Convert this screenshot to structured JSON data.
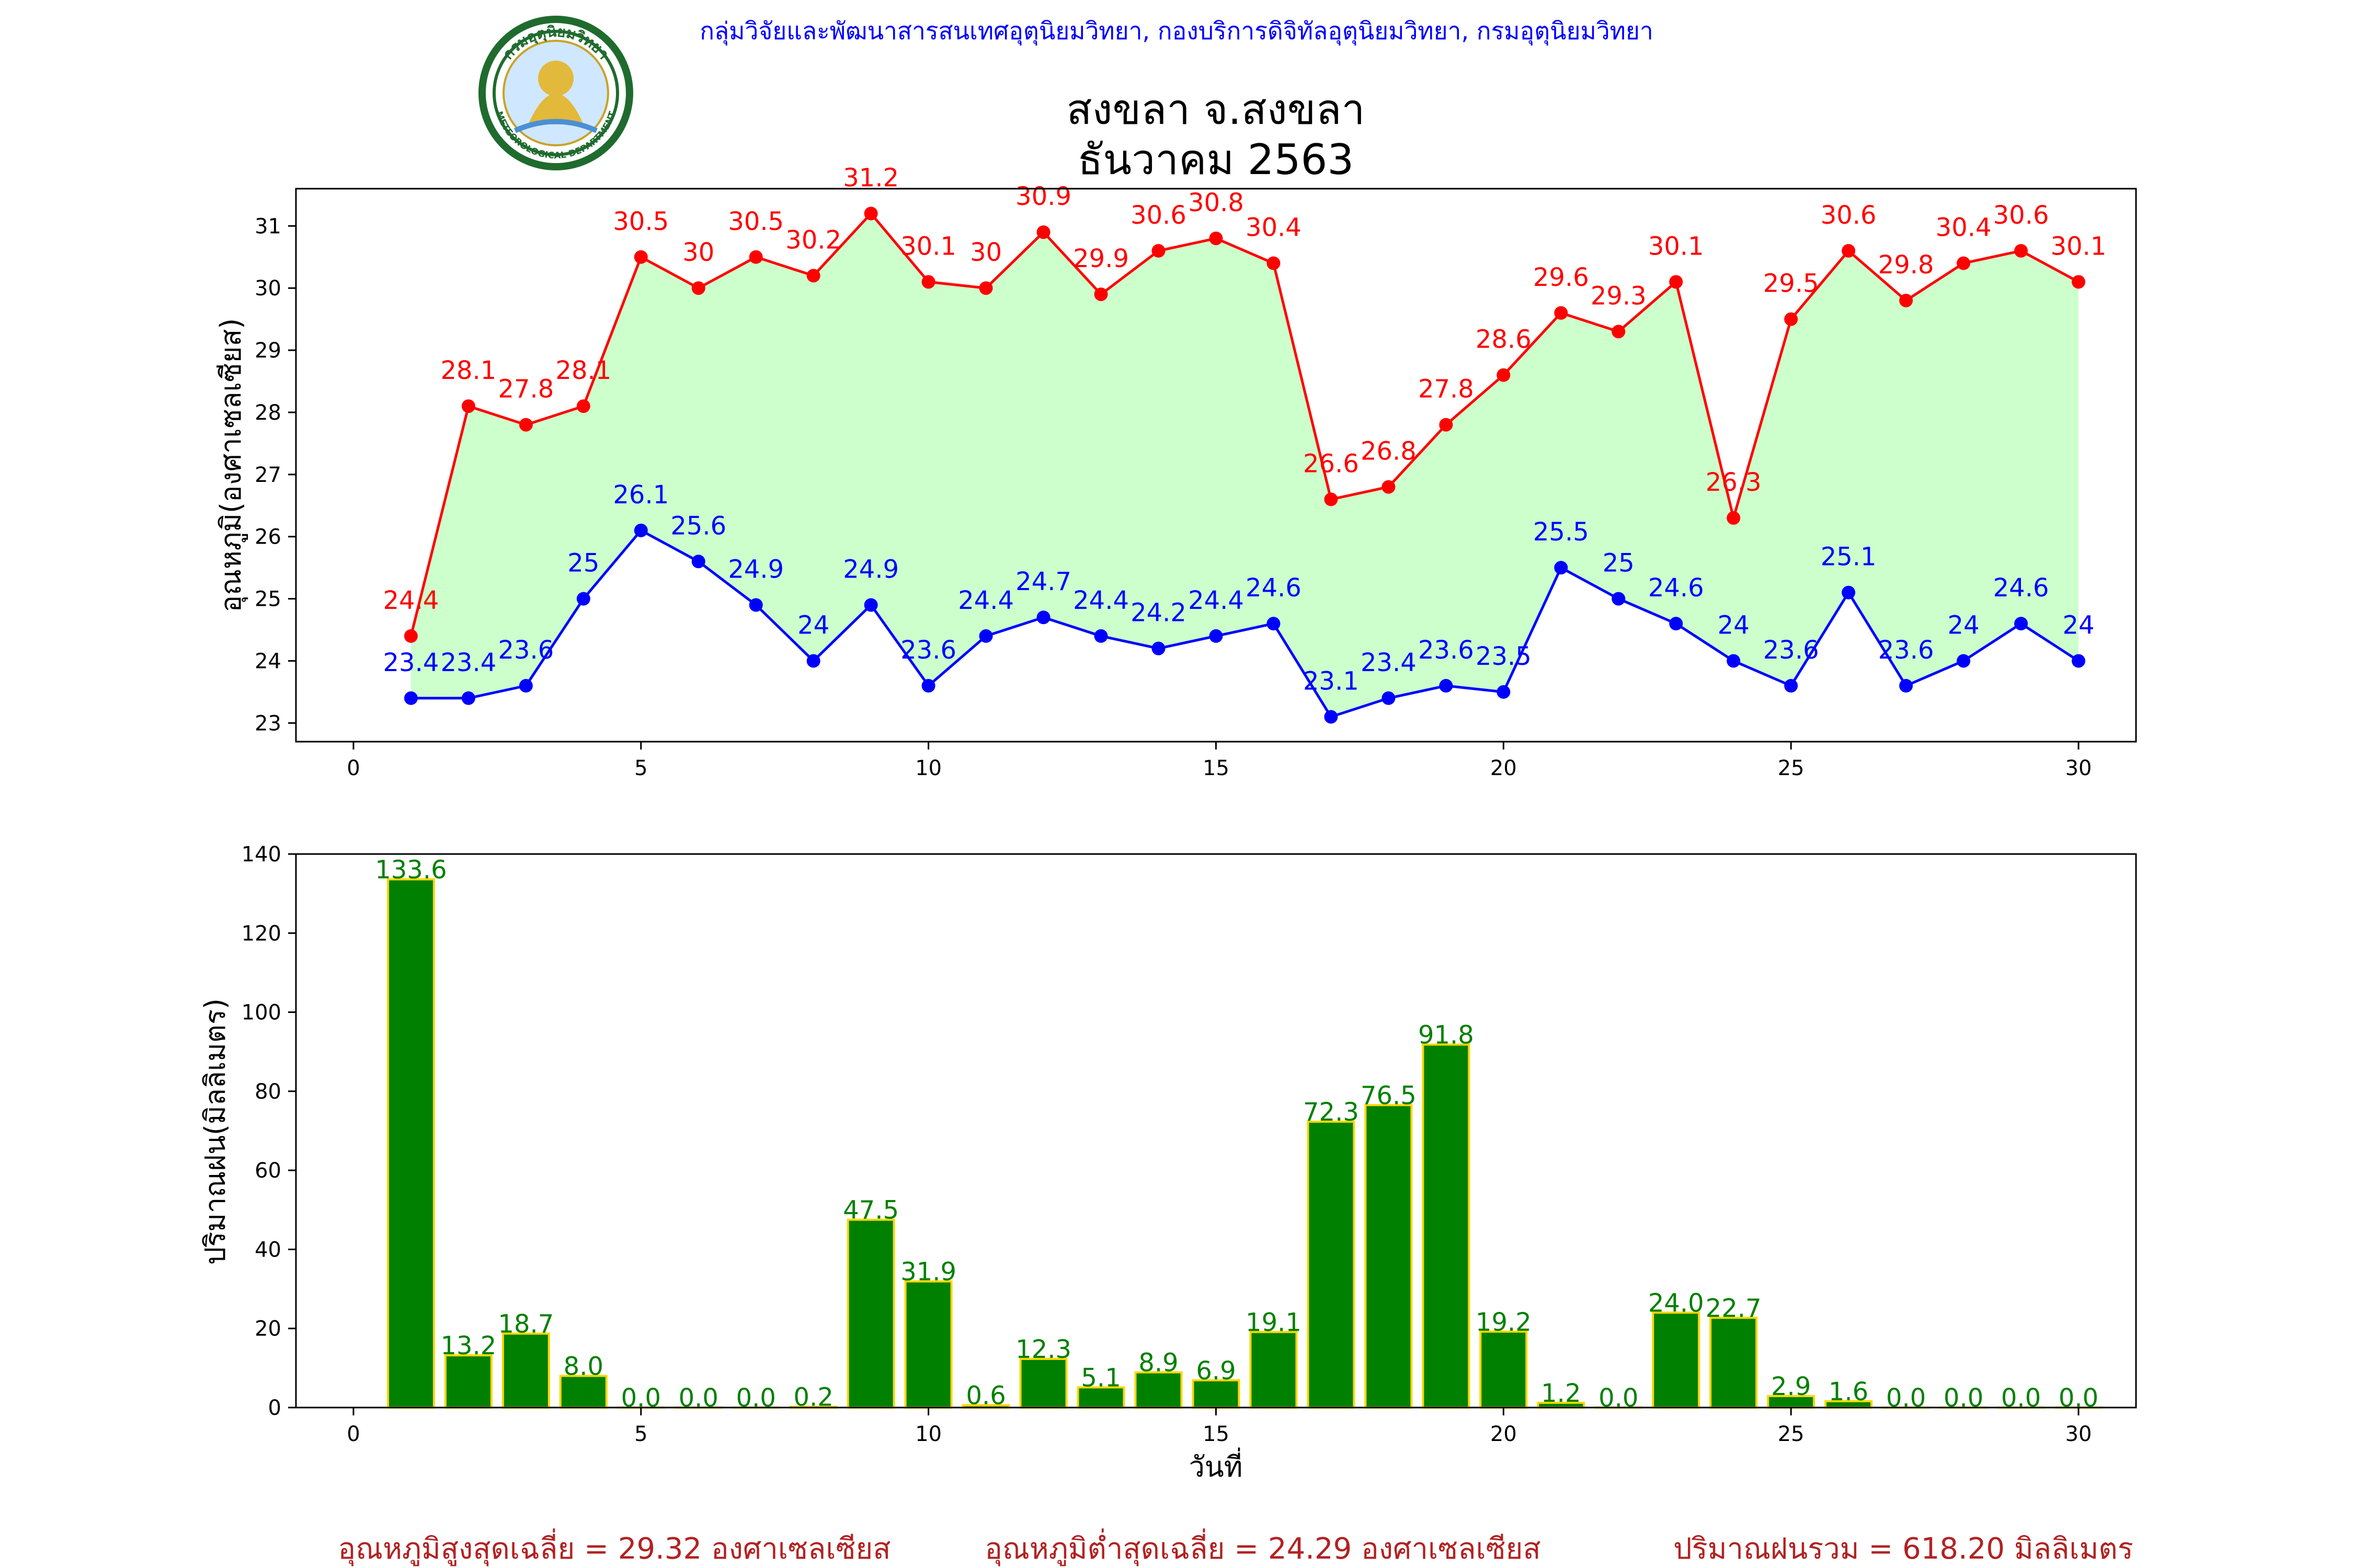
{
  "header": {
    "org_text": "กลุ่มวิจัยและพัฒนาสารสนเทศอุตุนิยมวิทยา, กองบริการดิจิทัลอุตุนิยมวิทยา, กรมอุตุนิยมวิทยา",
    "title_line1": "สงขลา จ.สงขลา",
    "title_line2": "ธันวาคม 2563",
    "logo": {
      "top_text": "กรมอุตุนิยมวิทยา",
      "bottom_text": "METEOROLOGICAL DEPARTMENT"
    }
  },
  "colors": {
    "max_line": "#ff0000",
    "min_line": "#0000ff",
    "fill": "#ccffcc",
    "bar": "#008000",
    "bar_edge": "#ffd700",
    "bar_label": "#008000",
    "org_text": "#0000ff",
    "summary": "#b22222"
  },
  "chart_data": [
    {
      "type": "line",
      "ylabel": "อุณหภูมิ(องศาเซลเซียส)",
      "xlim": [
        -1,
        31
      ],
      "ylim": [
        22.7,
        31.6
      ],
      "xticks": [
        "0",
        "5",
        "10",
        "15",
        "20",
        "25",
        "30"
      ],
      "yticks": [
        "23",
        "24",
        "25",
        "26",
        "27",
        "28",
        "29",
        "30",
        "31"
      ],
      "x": [
        1,
        2,
        3,
        4,
        5,
        6,
        7,
        8,
        9,
        10,
        11,
        12,
        13,
        14,
        15,
        16,
        17,
        18,
        19,
        20,
        21,
        22,
        23,
        24,
        25,
        26,
        27,
        28,
        29,
        30
      ],
      "series": [
        {
          "key": "max",
          "values": [
            24.4,
            28.1,
            27.8,
            28.1,
            30.5,
            30.0,
            30.5,
            30.2,
            31.2,
            30.1,
            30.0,
            30.9,
            29.9,
            30.6,
            30.8,
            30.4,
            26.6,
            26.8,
            27.8,
            28.6,
            29.6,
            29.3,
            30.1,
            26.3,
            29.5,
            30.6,
            29.8,
            30.4,
            30.6,
            30.1
          ]
        },
        {
          "key": "min",
          "values": [
            23.4,
            23.4,
            23.6,
            25.0,
            26.1,
            25.6,
            24.9,
            24.0,
            24.9,
            23.6,
            24.4,
            24.7,
            24.4,
            24.2,
            24.4,
            24.6,
            23.1,
            23.4,
            23.6,
            23.5,
            25.5,
            25.0,
            24.6,
            24.0,
            23.6,
            25.1,
            23.6,
            24.0,
            24.6,
            24.0
          ]
        }
      ]
    },
    {
      "type": "bar",
      "ylabel": "ปริมาณฝน(มิลลิเมตร)",
      "xlabel": "วันที่",
      "xlim": [
        -1,
        31
      ],
      "ylim": [
        0,
        140
      ],
      "xticks": [
        "0",
        "5",
        "10",
        "15",
        "20",
        "25",
        "30"
      ],
      "yticks": [
        "0",
        "20",
        "40",
        "60",
        "80",
        "100",
        "120",
        "140"
      ],
      "x": [
        1,
        2,
        3,
        4,
        5,
        6,
        7,
        8,
        9,
        10,
        11,
        12,
        13,
        14,
        15,
        16,
        17,
        18,
        19,
        20,
        21,
        22,
        23,
        24,
        25,
        26,
        27,
        28,
        29,
        30
      ],
      "values": [
        133.6,
        13.2,
        18.7,
        8.0,
        0.0,
        0.0,
        0.0,
        0.2,
        47.5,
        31.9,
        0.6,
        12.3,
        5.1,
        8.9,
        6.9,
        19.1,
        72.3,
        76.5,
        91.8,
        19.2,
        1.2,
        0.0,
        24.0,
        22.7,
        2.9,
        1.6,
        0.0,
        0.0,
        0.0,
        0.0
      ],
      "labels": [
        "133.6",
        "13.2",
        "18.7",
        "8.0",
        "0.0",
        "0.0",
        "0.0",
        "0.2",
        "47.5",
        "31.9",
        "0.6",
        "12.3",
        "5.1",
        "8.9",
        "6.9",
        "19.1",
        "72.3",
        "76.5",
        "91.8",
        "19.2",
        "1.2",
        "0.0",
        "24.0",
        "22.7",
        "2.9",
        "1.6",
        "0.0",
        "0.0",
        "0.0",
        "0.0"
      ]
    }
  ],
  "summary": {
    "avg_max": "อุณหภูมิสูงสุดเฉลี่ย = 29.32 องศาเซลเซียส",
    "avg_min": "อุณหภูมิต่ำสุดเฉลี่ย = 24.29 องศาเซลเซียส",
    "total_rain": "ปริมาณฝนรวม = 618.20 มิลลิเมตร"
  }
}
